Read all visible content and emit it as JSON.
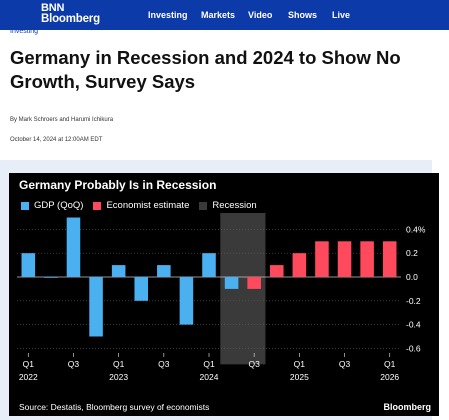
{
  "header": {
    "logo_line1": "BNN",
    "logo_line2": "Bloomberg",
    "nav": [
      "Investing",
      "Markets",
      "Video",
      "Shows",
      "Live"
    ]
  },
  "article": {
    "section": "Investing",
    "title": "Germany in Recession and 2024 to Show No Growth, Survey Says",
    "byline": "By Mark Schroers and Harumi Ichikura",
    "date": "October 14, 2024 at 12:00AM EDT"
  },
  "chart_data": {
    "type": "bar",
    "title": "Germany Probably Is in Recession",
    "legend": [
      {
        "label": "GDP (QoQ)",
        "color": "#4ab0f0"
      },
      {
        "label": "Economist estimate",
        "color": "#ff4a5e"
      },
      {
        "label": "Recession",
        "color": "#3a3a3a"
      }
    ],
    "categories": [
      "Q1 2022",
      "Q2 2022",
      "Q3 2022",
      "Q4 2022",
      "Q1 2023",
      "Q2 2023",
      "Q3 2023",
      "Q4 2023",
      "Q1 2024",
      "Q2 2024",
      "Q3 2024",
      "Q4 2024",
      "Q1 2025",
      "Q2 2025",
      "Q3 2025",
      "Q4 2025",
      "Q1 2026"
    ],
    "series": [
      {
        "name": "GDP (QoQ)",
        "values": [
          0.2,
          0.0,
          0.5,
          -0.5,
          0.1,
          -0.2,
          0.1,
          -0.4,
          0.2,
          -0.1,
          null,
          null,
          null,
          null,
          null,
          null,
          null
        ]
      },
      {
        "name": "Economist estimate",
        "values": [
          null,
          null,
          null,
          null,
          null,
          null,
          null,
          null,
          null,
          null,
          -0.1,
          0.1,
          0.2,
          0.3,
          0.3,
          0.3,
          0.3
        ]
      }
    ],
    "recession": [
      "Q2 2024",
      "Q3 2024"
    ],
    "y_ticks": [
      "0.4%",
      "0.2",
      "0.0",
      "-0.2",
      "-0.4",
      "-0.6"
    ],
    "ylim": [
      -0.65,
      0.55
    ],
    "x_tick_labels": [
      {
        "q": "Q1",
        "year": "2022"
      },
      {
        "q": "Q3",
        "year": ""
      },
      {
        "q": "Q1",
        "year": "2023"
      },
      {
        "q": "Q3",
        "year": ""
      },
      {
        "q": "Q1",
        "year": "2024"
      },
      {
        "q": "Q3",
        "year": ""
      },
      {
        "q": "Q1",
        "year": "2025"
      },
      {
        "q": "Q3",
        "year": ""
      },
      {
        "q": "Q1",
        "year": "2026"
      }
    ],
    "source": "Source: Destatis, Bloomberg survey of economists",
    "brand": "Bloomberg",
    "colors": {
      "background": "#000000",
      "gdp": "#4ab0f0",
      "estimate": "#ff4a5e",
      "recession": "#3a3a3a"
    }
  }
}
